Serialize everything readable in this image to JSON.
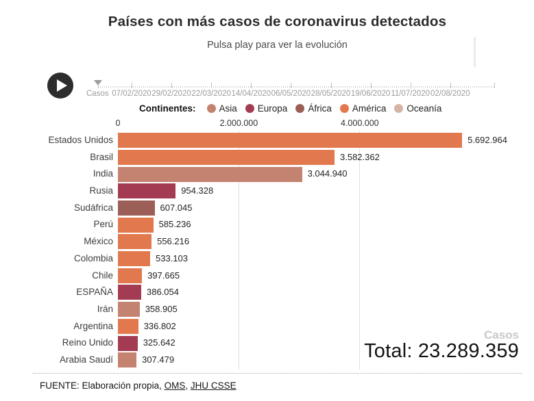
{
  "header": {
    "title": "Países con más casos de coronavirus detectados",
    "subtitle": "Pulsa play para ver la evolución"
  },
  "timeline": {
    "axis_label": "Casos",
    "dates": [
      "07/02/2020",
      "29/02/2020",
      "22/03/2020",
      "14/04/2020",
      "06/05/2020",
      "28/05/2020",
      "19/06/2020",
      "11/07/2020",
      "02/08/2020"
    ]
  },
  "chart_data": {
    "type": "bar",
    "orientation": "horizontal",
    "title": "Países con más casos de coronavirus detectados",
    "subtitle": "Pulsa play para ver la evolución",
    "unit_label": "Casos",
    "x_axis": {
      "tick_labels": [
        "0",
        "2.000.000",
        "4.000.000"
      ],
      "tick_values": [
        0,
        2000000,
        4000000
      ],
      "max": 6236000,
      "grid": true
    },
    "legend": {
      "title": "Continentes:",
      "entries": [
        {
          "name": "Asia",
          "color": "#c48370"
        },
        {
          "name": "Europa",
          "color": "#a33c52"
        },
        {
          "name": "África",
          "color": "#9c5f57"
        },
        {
          "name": "América",
          "color": "#e2794e"
        },
        {
          "name": "Oceanía",
          "color": "#d4b4a5"
        }
      ]
    },
    "bars": [
      {
        "country": "Estados Unidos",
        "value": 5692964,
        "label": "5.692.964",
        "continent": "América"
      },
      {
        "country": "Brasil",
        "value": 3582362,
        "label": "3.582.362",
        "continent": "América"
      },
      {
        "country": "India",
        "value": 3044940,
        "label": "3.044.940",
        "continent": "Asia"
      },
      {
        "country": "Rusia",
        "value": 954328,
        "label": "954.328",
        "continent": "Europa"
      },
      {
        "country": "Sudáfrica",
        "value": 607045,
        "label": "607.045",
        "continent": "África"
      },
      {
        "country": "Perú",
        "value": 585236,
        "label": "585.236",
        "continent": "América"
      },
      {
        "country": "México",
        "value": 556216,
        "label": "556.216",
        "continent": "América"
      },
      {
        "country": "Colombia",
        "value": 533103,
        "label": "533.103",
        "continent": "América"
      },
      {
        "country": "Chile",
        "value": 397665,
        "label": "397.665",
        "continent": "América"
      },
      {
        "country": "ESPAÑA",
        "value": 386054,
        "label": "386.054",
        "continent": "Europa"
      },
      {
        "country": "Irán",
        "value": 358905,
        "label": "358.905",
        "continent": "Asia"
      },
      {
        "country": "Argentina",
        "value": 336802,
        "label": "336.802",
        "continent": "América"
      },
      {
        "country": "Reino Unido",
        "value": 325642,
        "label": "325.642",
        "continent": "Europa"
      },
      {
        "country": "Arabia Saudí",
        "value": 307479,
        "label": "307.479",
        "continent": "Asia"
      }
    ],
    "total_value": 23289359,
    "total_label": "Total: 23.289.359"
  },
  "footer": {
    "prefix": "FUENTE: Elaboración propia, ",
    "links": [
      {
        "label": "OMS"
      },
      {
        "label": "JHU CSSE"
      }
    ],
    "separator": ", "
  }
}
